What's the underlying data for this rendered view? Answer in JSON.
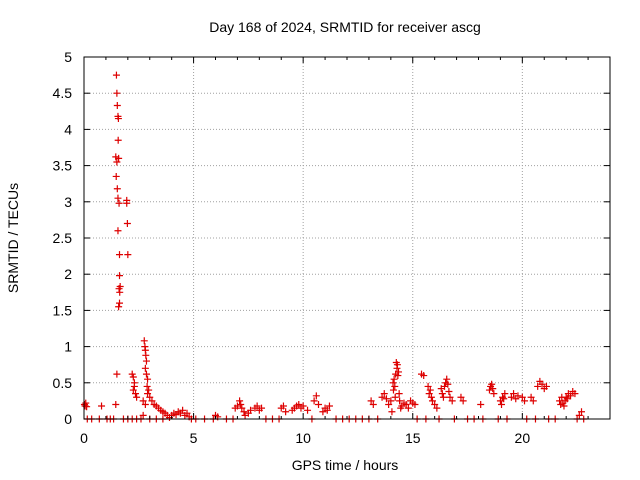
{
  "chart_data": {
    "type": "scatter",
    "title": "Day 168 of 2024, SRMTID for receiver ascg",
    "xlabel": "GPS time / hours",
    "ylabel": "SRMTID / TECUs",
    "xlim": [
      0,
      24
    ],
    "ylim": [
      0,
      5
    ],
    "xticks": [
      0,
      5,
      10,
      15,
      20
    ],
    "xtick_labels": [
      "0",
      "5",
      "10",
      "15",
      "20"
    ],
    "yticks": [
      0,
      0.5,
      1,
      1.5,
      2,
      2.5,
      3,
      3.5,
      4,
      4.5,
      5
    ],
    "ytick_labels": [
      "0",
      "0.5",
      "1",
      "1.5",
      "2",
      "2.5",
      "3",
      "3.5",
      "4",
      "4.5",
      "5"
    ],
    "grid": true,
    "marker": "+",
    "colors": {
      "series": "#dd0000",
      "grid": "#a0a0a0",
      "axis": "#000000"
    },
    "series": [
      {
        "name": "SRMTID",
        "points": [
          [
            0.02,
            0.2
          ],
          [
            0.05,
            0.18
          ],
          [
            0.08,
            0.22
          ],
          [
            0.12,
            0.17
          ],
          [
            0.15,
            0.0
          ],
          [
            0.35,
            0.0
          ],
          [
            0.7,
            0.0
          ],
          [
            0.8,
            0.18
          ],
          [
            1.05,
            0.0
          ],
          [
            1.2,
            0.0
          ],
          [
            1.35,
            0.0
          ],
          [
            1.48,
            4.75
          ],
          [
            1.5,
            4.5
          ],
          [
            1.52,
            4.33
          ],
          [
            1.55,
            4.18
          ],
          [
            1.57,
            4.15
          ],
          [
            1.56,
            3.85
          ],
          [
            1.45,
            3.62
          ],
          [
            1.58,
            3.6
          ],
          [
            1.5,
            3.55
          ],
          [
            1.47,
            3.35
          ],
          [
            1.52,
            3.18
          ],
          [
            1.55,
            3.05
          ],
          [
            1.6,
            2.98
          ],
          [
            1.55,
            2.6
          ],
          [
            1.62,
            2.27
          ],
          [
            1.62,
            1.98
          ],
          [
            1.6,
            1.8
          ],
          [
            1.63,
            1.75
          ],
          [
            1.65,
            1.83
          ],
          [
            1.62,
            1.6
          ],
          [
            1.58,
            1.55
          ],
          [
            1.5,
            0.62
          ],
          [
            1.45,
            0.2
          ],
          [
            1.95,
            3.02
          ],
          [
            1.95,
            2.98
          ],
          [
            1.98,
            2.7
          ],
          [
            2.0,
            2.27
          ],
          [
            1.8,
            0.0
          ],
          [
            2.0,
            0.0
          ],
          [
            2.2,
            0.0
          ],
          [
            2.2,
            0.62
          ],
          [
            2.25,
            0.58
          ],
          [
            2.3,
            0.5
          ],
          [
            2.25,
            0.4
          ],
          [
            2.35,
            0.35
          ],
          [
            2.3,
            0.45
          ],
          [
            2.4,
            0.3
          ],
          [
            2.4,
            0.0
          ],
          [
            2.6,
            0.0
          ],
          [
            2.7,
            0.05
          ],
          [
            2.75,
            1.08
          ],
          [
            2.78,
            1.0
          ],
          [
            2.8,
            0.95
          ],
          [
            2.82,
            0.88
          ],
          [
            2.85,
            0.8
          ],
          [
            2.8,
            0.7
          ],
          [
            2.85,
            0.62
          ],
          [
            2.9,
            0.55
          ],
          [
            2.88,
            0.45
          ],
          [
            2.95,
            0.4
          ],
          [
            2.9,
            0.35
          ],
          [
            3.0,
            0.3
          ],
          [
            2.7,
            0.25
          ],
          [
            2.8,
            0.2
          ],
          [
            3.1,
            0.25
          ],
          [
            3.2,
            0.2
          ],
          [
            3.3,
            0.18
          ],
          [
            3.4,
            0.15
          ],
          [
            3.5,
            0.12
          ],
          [
            3.6,
            0.1
          ],
          [
            3.7,
            0.08
          ],
          [
            3.8,
            0.05
          ],
          [
            3.9,
            0.02
          ],
          [
            3.0,
            0.0
          ],
          [
            3.3,
            0.0
          ],
          [
            3.6,
            0.0
          ],
          [
            4.0,
            0.05
          ],
          [
            4.1,
            0.08
          ],
          [
            4.2,
            0.06
          ],
          [
            4.3,
            0.1
          ],
          [
            4.4,
            0.08
          ],
          [
            4.5,
            0.12
          ],
          [
            4.6,
            0.05
          ],
          [
            4.7,
            0.08
          ],
          [
            4.8,
            0.03
          ],
          [
            4.9,
            0.0
          ],
          [
            5.1,
            0.0
          ],
          [
            5.5,
            0.0
          ],
          [
            5.9,
            0.0
          ],
          [
            6.0,
            0.05
          ],
          [
            6.1,
            0.03
          ],
          [
            6.5,
            0.0
          ],
          [
            6.8,
            0.0
          ],
          [
            6.9,
            0.15
          ],
          [
            7.0,
            0.18
          ],
          [
            7.1,
            0.25
          ],
          [
            7.15,
            0.2
          ],
          [
            7.2,
            0.15
          ],
          [
            7.3,
            0.1
          ],
          [
            7.35,
            0.05
          ],
          [
            7.5,
            0.08
          ],
          [
            7.6,
            0.12
          ],
          [
            7.8,
            0.15
          ],
          [
            7.9,
            0.18
          ],
          [
            8.0,
            0.12
          ],
          [
            8.1,
            0.15
          ],
          [
            8.3,
            0.0
          ],
          [
            8.6,
            0.0
          ],
          [
            8.9,
            0.0
          ],
          [
            9.0,
            0.15
          ],
          [
            9.1,
            0.18
          ],
          [
            9.2,
            0.1
          ],
          [
            9.5,
            0.12
          ],
          [
            9.6,
            0.15
          ],
          [
            9.7,
            0.18
          ],
          [
            9.8,
            0.2
          ],
          [
            9.9,
            0.15
          ],
          [
            10.0,
            0.18
          ],
          [
            10.2,
            0.12
          ],
          [
            10.4,
            0.0
          ],
          [
            10.5,
            0.25
          ],
          [
            10.6,
            0.32
          ],
          [
            10.7,
            0.2
          ],
          [
            10.9,
            0.1
          ],
          [
            11.0,
            0.15
          ],
          [
            11.1,
            0.12
          ],
          [
            11.2,
            0.18
          ],
          [
            11.5,
            0.0
          ],
          [
            11.8,
            0.0
          ],
          [
            12.1,
            0.0
          ],
          [
            12.4,
            0.0
          ],
          [
            12.7,
            0.0
          ],
          [
            13.0,
            0.0
          ],
          [
            13.1,
            0.25
          ],
          [
            13.2,
            0.2
          ],
          [
            13.4,
            0.0
          ],
          [
            13.6,
            0.3
          ],
          [
            13.7,
            0.35
          ],
          [
            13.8,
            0.28
          ],
          [
            13.9,
            0.2
          ],
          [
            14.0,
            0.25
          ],
          [
            14.05,
            0.1
          ],
          [
            14.1,
            0.5
          ],
          [
            14.12,
            0.4
          ],
          [
            14.15,
            0.55
          ],
          [
            14.18,
            0.45
          ],
          [
            14.2,
            0.3
          ],
          [
            14.22,
            0.62
          ],
          [
            14.25,
            0.78
          ],
          [
            14.28,
            0.7
          ],
          [
            14.3,
            0.75
          ],
          [
            14.32,
            0.6
          ],
          [
            14.35,
            0.65
          ],
          [
            14.38,
            0.35
          ],
          [
            14.4,
            0.25
          ],
          [
            14.45,
            0.15
          ],
          [
            14.5,
            0.18
          ],
          [
            14.6,
            0.22
          ],
          [
            14.7,
            0.2
          ],
          [
            14.8,
            0.15
          ],
          [
            14.9,
            0.25
          ],
          [
            15.0,
            0.22
          ],
          [
            15.1,
            0.2
          ],
          [
            15.2,
            0.0
          ],
          [
            15.4,
            0.62
          ],
          [
            15.5,
            0.6
          ],
          [
            15.6,
            0.0
          ],
          [
            15.7,
            0.45
          ],
          [
            15.75,
            0.35
          ],
          [
            15.8,
            0.4
          ],
          [
            15.85,
            0.3
          ],
          [
            15.9,
            0.25
          ],
          [
            16.0,
            0.2
          ],
          [
            16.1,
            0.15
          ],
          [
            16.2,
            0.0
          ],
          [
            16.3,
            0.42
          ],
          [
            16.35,
            0.35
          ],
          [
            16.4,
            0.3
          ],
          [
            16.45,
            0.45
          ],
          [
            16.5,
            0.5
          ],
          [
            16.55,
            0.55
          ],
          [
            16.6,
            0.48
          ],
          [
            16.65,
            0.38
          ],
          [
            16.7,
            0.3
          ],
          [
            16.8,
            0.25
          ],
          [
            16.9,
            0.0
          ],
          [
            17.2,
            0.3
          ],
          [
            17.3,
            0.25
          ],
          [
            17.5,
            0.0
          ],
          [
            17.8,
            0.0
          ],
          [
            18.1,
            0.2
          ],
          [
            18.2,
            0.0
          ],
          [
            18.5,
            0.4
          ],
          [
            18.55,
            0.45
          ],
          [
            18.6,
            0.48
          ],
          [
            18.65,
            0.42
          ],
          [
            18.7,
            0.35
          ],
          [
            18.9,
            0.0
          ],
          [
            19.0,
            0.25
          ],
          [
            19.05,
            0.2
          ],
          [
            19.1,
            0.3
          ],
          [
            19.15,
            0.28
          ],
          [
            19.2,
            0.35
          ],
          [
            19.3,
            0.0
          ],
          [
            19.5,
            0.3
          ],
          [
            19.6,
            0.35
          ],
          [
            19.7,
            0.28
          ],
          [
            19.8,
            0.32
          ],
          [
            20.0,
            0.3
          ],
          [
            20.1,
            0.25
          ],
          [
            20.2,
            0.0
          ],
          [
            20.4,
            0.3
          ],
          [
            20.5,
            0.25
          ],
          [
            20.6,
            0.0
          ],
          [
            20.7,
            0.45
          ],
          [
            20.8,
            0.52
          ],
          [
            20.9,
            0.48
          ],
          [
            21.0,
            0.42
          ],
          [
            21.1,
            0.45
          ],
          [
            21.2,
            0.0
          ],
          [
            21.5,
            0.0
          ],
          [
            21.7,
            0.25
          ],
          [
            21.75,
            0.2
          ],
          [
            21.8,
            0.3
          ],
          [
            21.85,
            0.22
          ],
          [
            21.9,
            0.18
          ],
          [
            21.95,
            0.25
          ],
          [
            22.0,
            0.3
          ],
          [
            22.05,
            0.28
          ],
          [
            22.1,
            0.35
          ],
          [
            22.2,
            0.32
          ],
          [
            22.3,
            0.38
          ],
          [
            22.4,
            0.35
          ],
          [
            22.5,
            0.0
          ],
          [
            22.6,
            0.05
          ],
          [
            22.7,
            0.1
          ],
          [
            22.8,
            0.0
          ]
        ]
      }
    ]
  }
}
